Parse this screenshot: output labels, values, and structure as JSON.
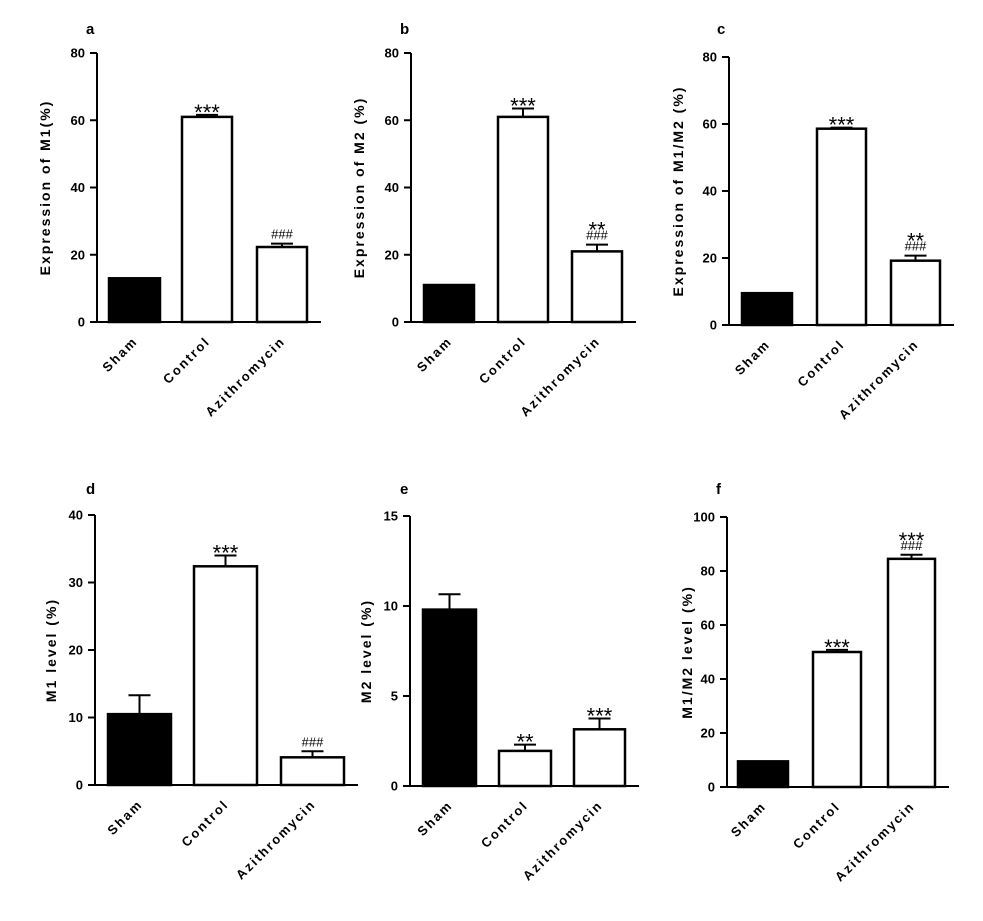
{
  "chart_data": [
    {
      "panel": "a",
      "type": "bar",
      "ylabel": "Expression of M1(%)",
      "ylim": [
        0,
        80
      ],
      "yticks": [
        0,
        20,
        40,
        60,
        80
      ],
      "categories": [
        "Sham",
        "Control",
        "Azithromycin"
      ],
      "values": [
        13,
        61,
        22.3
      ],
      "errors": [
        0,
        0.6,
        1.0
      ],
      "fills": [
        "#000000",
        "#ffffff",
        "#ffffff"
      ],
      "stars": [
        "",
        "***",
        ""
      ],
      "hashes": [
        "",
        "",
        "###"
      ]
    },
    {
      "panel": "b",
      "type": "bar",
      "ylabel": "Expression of M2 (%)",
      "ylim": [
        0,
        80
      ],
      "yticks": [
        0,
        20,
        40,
        60,
        80
      ],
      "categories": [
        "Sham",
        "Control",
        "Azithromycin"
      ],
      "values": [
        11,
        61,
        21
      ],
      "errors": [
        0,
        2.5,
        2.0
      ],
      "fills": [
        "#000000",
        "#ffffff",
        "#ffffff"
      ],
      "stars": [
        "",
        "***",
        "**"
      ],
      "hashes": [
        "",
        "",
        "###"
      ]
    },
    {
      "panel": "c",
      "type": "bar",
      "ylabel": "Expression of M1/M2 (%)",
      "ylim": [
        0,
        80
      ],
      "yticks": [
        0,
        20,
        40,
        60,
        80
      ],
      "categories": [
        "Sham",
        "Control",
        "Azithromycin"
      ],
      "values": [
        9.5,
        58.6,
        19.2
      ],
      "errors": [
        0,
        0.3,
        1.5
      ],
      "fills": [
        "#000000",
        "#ffffff",
        "#ffffff"
      ],
      "stars": [
        "",
        "***",
        "**"
      ],
      "hashes": [
        "",
        "",
        "###"
      ]
    },
    {
      "panel": "d",
      "type": "bar",
      "ylabel": "M1 level (%)",
      "ylim": [
        0,
        40
      ],
      "yticks": [
        0,
        10,
        20,
        30,
        40
      ],
      "categories": [
        "Sham",
        "Control",
        "Azithromycin"
      ],
      "values": [
        10.5,
        32.4,
        4.1
      ],
      "errors": [
        2.8,
        1.6,
        0.9
      ],
      "fills": [
        "#000000",
        "#ffffff",
        "#ffffff"
      ],
      "stars": [
        "",
        "***",
        ""
      ],
      "hashes": [
        "",
        "",
        "###"
      ]
    },
    {
      "panel": "e",
      "type": "bar",
      "ylabel": "M2 level (%)",
      "ylim": [
        0,
        15
      ],
      "yticks": [
        0,
        5,
        10,
        15
      ],
      "categories": [
        "Sham",
        "Control",
        "Azithromycin"
      ],
      "values": [
        9.8,
        1.95,
        3.15
      ],
      "errors": [
        0.85,
        0.35,
        0.6
      ],
      "fills": [
        "#000000",
        "#ffffff",
        "#ffffff"
      ],
      "stars": [
        "",
        "**",
        "***"
      ],
      "hashes": [
        "",
        "",
        ""
      ]
    },
    {
      "panel": "f",
      "type": "bar",
      "ylabel": "M1/M2 level (%)",
      "ylim": [
        0,
        100
      ],
      "yticks": [
        0,
        20,
        40,
        60,
        80,
        100
      ],
      "categories": [
        "Sham",
        "Control",
        "Azithromycin"
      ],
      "values": [
        9.5,
        50,
        84.5
      ],
      "errors": [
        0,
        0.8,
        1.5
      ],
      "fills": [
        "#000000",
        "#ffffff",
        "#ffffff"
      ],
      "stars": [
        "",
        "***",
        "***"
      ],
      "hashes": [
        "",
        "",
        "###"
      ]
    }
  ]
}
